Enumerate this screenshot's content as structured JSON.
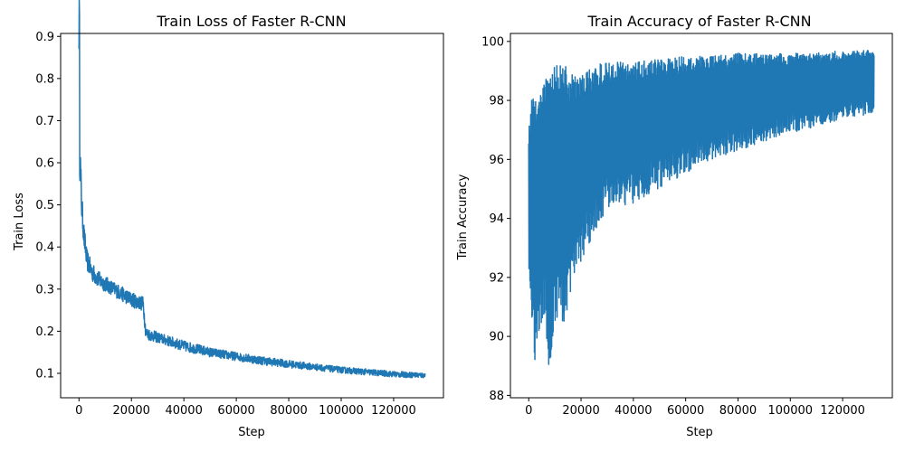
{
  "chart_data": [
    {
      "type": "line",
      "title": "Train Loss of Faster R-CNN",
      "xlabel": "Step",
      "ylabel": "Train Loss",
      "xlim": [
        -7000,
        139000
      ],
      "ylim": [
        0.042,
        0.907
      ],
      "xticks": [
        0,
        20000,
        40000,
        60000,
        80000,
        100000,
        120000
      ],
      "xtick_labels": [
        "0",
        "20000",
        "40000",
        "60000",
        "80000",
        "100000",
        "120000"
      ],
      "yticks": [
        0.1,
        0.2,
        0.3,
        0.4,
        0.5,
        0.6,
        0.7,
        0.8,
        0.9
      ],
      "ytick_labels": [
        "0.1",
        "0.2",
        "0.3",
        "0.4",
        "0.5",
        "0.6",
        "0.7",
        "0.8",
        "0.9"
      ],
      "grid": false,
      "color": "#1f77b4",
      "series": [
        {
          "x": [
            0,
            500,
            1000,
            2000,
            3000,
            5000,
            8000,
            12000,
            16000,
            20000,
            24500,
            25500,
            30000,
            40000,
            50000,
            60000,
            70000,
            80000,
            90000,
            100000,
            110000,
            120000,
            132000
          ],
          "y": [
            0.87,
            0.6,
            0.5,
            0.42,
            0.37,
            0.34,
            0.32,
            0.305,
            0.29,
            0.275,
            0.265,
            0.195,
            0.185,
            0.165,
            0.15,
            0.14,
            0.13,
            0.122,
            0.115,
            0.108,
            0.103,
            0.098,
            0.095
          ],
          "band": [
            0.6,
            0.1,
            0.07,
            0.06,
            0.05,
            0.045,
            0.04,
            0.035,
            0.035,
            0.035,
            0.035,
            0.03,
            0.025,
            0.025,
            0.022,
            0.02,
            0.02,
            0.018,
            0.016,
            0.015,
            0.015,
            0.014,
            0.013
          ]
        }
      ]
    },
    {
      "type": "line",
      "title": "Train Accuracy of Faster R-CNN",
      "xlabel": "Step",
      "ylabel": "Train Accuracy",
      "xlim": [
        -7000,
        139000
      ],
      "ylim": [
        87.92,
        100.27
      ],
      "xticks": [
        0,
        20000,
        40000,
        60000,
        80000,
        100000,
        120000
      ],
      "xtick_labels": [
        "0",
        "20000",
        "40000",
        "60000",
        "80000",
        "100000",
        "120000"
      ],
      "yticks": [
        88,
        90,
        92,
        94,
        96,
        98,
        100
      ],
      "ytick_labels": [
        "88",
        "90",
        "92",
        "94",
        "96",
        "98",
        "100"
      ],
      "grid": false,
      "color": "#1f77b4",
      "series": [
        {
          "x": [
            0,
            1000,
            2000,
            4000,
            6000,
            8000,
            10000,
            14000,
            18000,
            22000,
            26000,
            30000,
            40000,
            50000,
            60000,
            70000,
            80000,
            90000,
            100000,
            110000,
            120000,
            132000
          ],
          "upper": [
            96.9,
            98.3,
            98.1,
            98.5,
            98.6,
            99.0,
            99.2,
            99.2,
            98.8,
            99.0,
            99.2,
            99.3,
            99.3,
            99.4,
            99.5,
            99.5,
            99.6,
            99.6,
            99.6,
            99.6,
            99.7,
            99.7
          ],
          "lower": [
            92.3,
            91.0,
            88.6,
            89.5,
            90.8,
            88.5,
            90.5,
            90.5,
            92.0,
            93.0,
            93.5,
            94.2,
            94.5,
            95.0,
            95.5,
            96.0,
            96.3,
            96.6,
            96.9,
            97.1,
            97.3,
            97.6
          ],
          "center": [
            95.0,
            95.5,
            95.5,
            96.0,
            96.3,
            96.5,
            96.8,
            97.0,
            97.3,
            97.5,
            97.7,
            97.8,
            98.0,
            98.1,
            98.2,
            98.3,
            98.4,
            98.5,
            98.6,
            98.7,
            98.8,
            98.9
          ]
        }
      ]
    }
  ]
}
